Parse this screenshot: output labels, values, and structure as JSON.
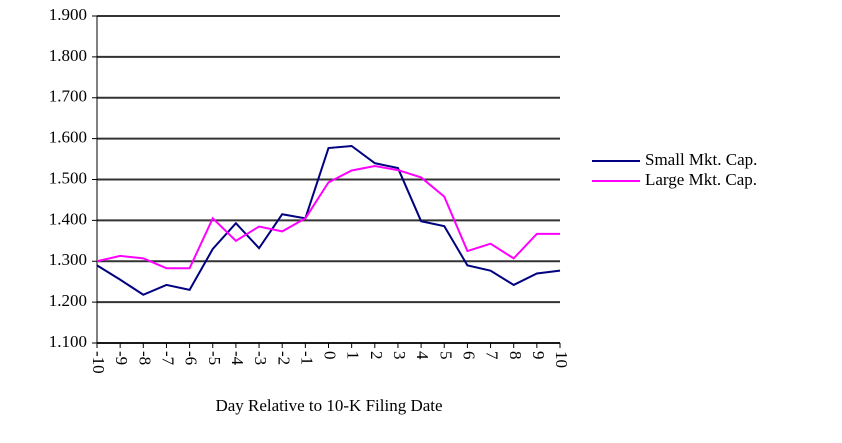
{
  "chart_data": {
    "type": "line",
    "x_label": "Day Relative to 10-K Filing Date",
    "categories": [
      "-10",
      "-9",
      "-8",
      "-7",
      "-6",
      "-5",
      "-4",
      "-3",
      "-2",
      "-1",
      "0",
      "1",
      "2",
      "3",
      "4",
      "5",
      "6",
      "7",
      "8",
      "9",
      "10"
    ],
    "series": [
      {
        "name": "Small Mkt. Cap.",
        "color": "#000080",
        "values": [
          1.29,
          1.255,
          1.218,
          1.242,
          1.23,
          1.33,
          1.393,
          1.332,
          1.415,
          1.405,
          1.577,
          1.582,
          1.54,
          1.528,
          1.398,
          1.386,
          1.29,
          1.277,
          1.242,
          1.27,
          1.277
        ]
      },
      {
        "name": "Large Mkt. Cap.",
        "color": "#ff00ff",
        "values": [
          1.3,
          1.313,
          1.307,
          1.283,
          1.283,
          1.405,
          1.35,
          1.385,
          1.373,
          1.405,
          1.493,
          1.522,
          1.533,
          1.523,
          1.505,
          1.458,
          1.325,
          1.343,
          1.307,
          1.367,
          1.367
        ]
      }
    ],
    "ylim": [
      1.1,
      1.9
    ],
    "yticks": [
      {
        "value": 1.1,
        "label": "1.100"
      },
      {
        "value": 1.2,
        "label": "1.200"
      },
      {
        "value": 1.3,
        "label": "1.300"
      },
      {
        "value": 1.4,
        "label": "1.400"
      },
      {
        "value": 1.5,
        "label": "1.500"
      },
      {
        "value": 1.6,
        "label": "1.600"
      },
      {
        "value": 1.7,
        "label": "1.700"
      },
      {
        "value": 1.8,
        "label": "1.800"
      },
      {
        "value": 1.9,
        "label": "1.900"
      }
    ],
    "grid": true,
    "legend": "right"
  }
}
